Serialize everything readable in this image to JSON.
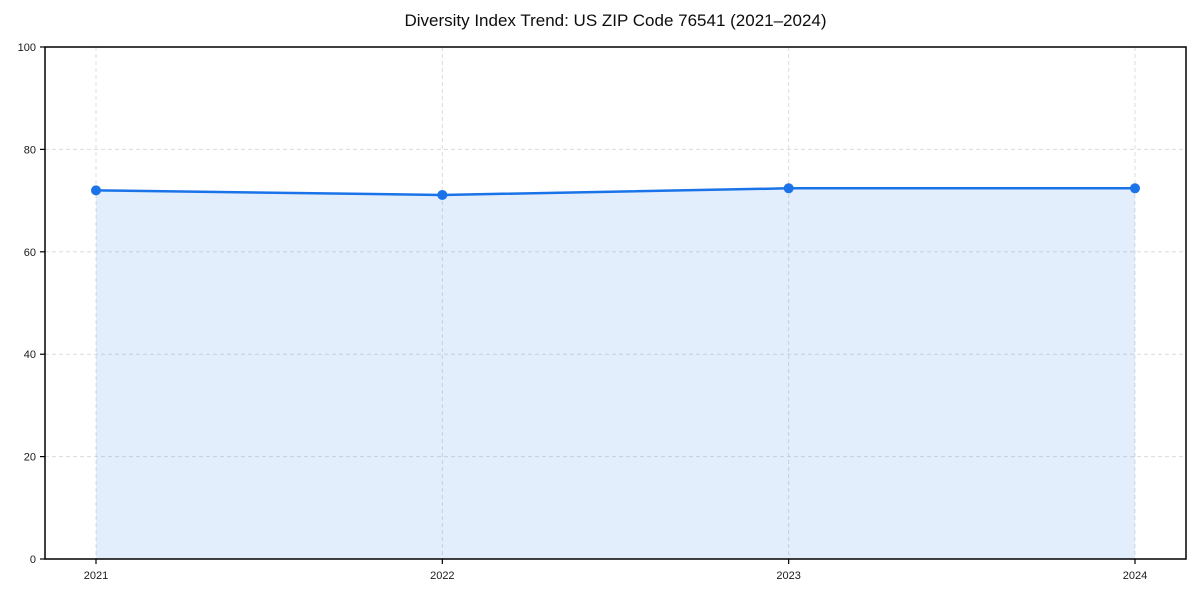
{
  "title": "Diversity Index Trend: US ZIP Code 76541 (2021–2024)",
  "chart_data": {
    "type": "area",
    "title": "Diversity Index Trend: US ZIP Code 76541 (2021–2024)",
    "categories": [
      "2021",
      "2022",
      "2023",
      "2024"
    ],
    "series": [
      {
        "name": "Diversity Index",
        "values": [
          72,
          71.1,
          72.4,
          72.4
        ]
      }
    ],
    "xlabel": "",
    "ylabel": "",
    "ylim": [
      0,
      100
    ],
    "yticks": [
      0,
      20,
      40,
      60,
      80,
      100
    ],
    "grid": true,
    "grid_style": "dashed",
    "legend_position": "none",
    "marker": "circle",
    "fill_to_zero": true,
    "colors": {
      "line": "#1a73e8",
      "marker": "#1a73e8",
      "fill": "rgba(26,115,232,0.12)",
      "grid": "#dcdcdc",
      "spine": "#000000",
      "tick_label": "#1a1a1a",
      "title": "#0d0d0d",
      "background": "#ffffff"
    }
  }
}
